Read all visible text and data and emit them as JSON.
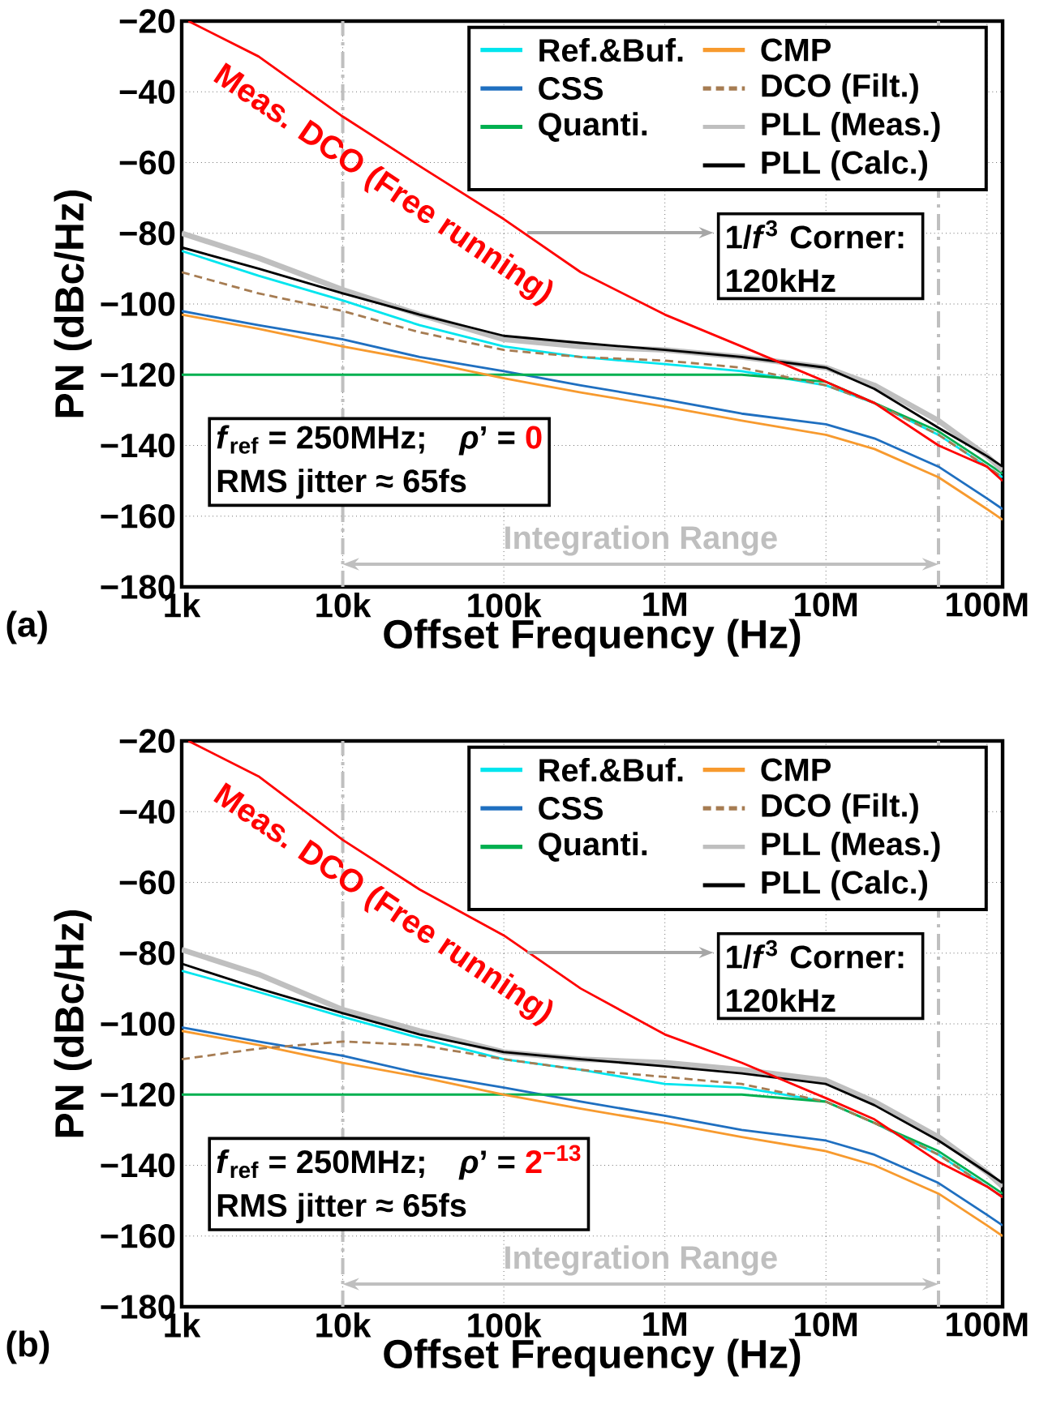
{
  "chart_data": [
    {
      "type": "line",
      "xlabel": "Offset Frequency (Hz)",
      "ylabel": "PN (dBc/Hz)",
      "log": "x",
      "grid": true,
      "legend": "top right",
      "x": [
        1000,
        3000,
        10000,
        30000,
        100000,
        300000,
        1000000,
        3000000,
        10000000,
        20000000,
        50000000,
        100000000,
        125000000
      ],
      "xlim": [
        1000,
        125000000
      ],
      "xticks": [
        {
          "value": 1000,
          "label": "1k"
        },
        {
          "value": 10000,
          "label": "10k"
        },
        {
          "value": 100000,
          "label": "100k"
        },
        {
          "value": 1000000,
          "label": "1M"
        },
        {
          "value": 10000000,
          "label": "10M"
        },
        {
          "value": 100000000,
          "label": "100M"
        }
      ],
      "ylim": [
        -180,
        -20
      ],
      "yticks": [
        {
          "value": -180,
          "label": "−180"
        },
        {
          "value": -160,
          "label": "−160"
        },
        {
          "value": -140,
          "label": "−140"
        },
        {
          "value": -120,
          "label": "−120"
        },
        {
          "value": -100,
          "label": "−100"
        },
        {
          "value": -80,
          "label": "−80"
        },
        {
          "value": -60,
          "label": "−60"
        },
        {
          "value": -40,
          "label": "−40"
        },
        {
          "value": -20,
          "label": "−20"
        }
      ],
      "series": [
        {
          "name": "Ref.&Buf.",
          "color": "#00e5ee",
          "values": [
            -85,
            -92,
            -99,
            -106,
            -112,
            -115,
            -117,
            -119,
            -123,
            -128,
            -137,
            -146,
            -149
          ]
        },
        {
          "name": "CSS",
          "color": "#1f6fc0",
          "values": [
            -102,
            -106,
            -110,
            -115,
            -119,
            -123,
            -127,
            -131,
            -134,
            -138,
            -146,
            -155,
            -158
          ]
        },
        {
          "name": "Quanti.",
          "color": "#00b050",
          "values": [
            -120,
            -120,
            -120,
            -120,
            -120,
            -120,
            -120,
            -120,
            -122,
            -128,
            -136,
            -145,
            -148
          ]
        },
        {
          "name": "CMP",
          "color": "#f79a2e",
          "values": [
            -103,
            -107,
            -112,
            -116,
            -121,
            -125,
            -129,
            -133,
            -137,
            -141,
            -149,
            -158,
            -161
          ]
        },
        {
          "name": "DCO (Filt.)",
          "color": "#a67c52",
          "line_style": "dashed",
          "values": [
            -91,
            -97,
            -102,
            -108,
            -113,
            -115,
            -116,
            -118,
            -123,
            -128,
            -137,
            -146,
            -149
          ]
        },
        {
          "name": "PLL (Meas.)",
          "color": "#bfbfbf",
          "values": [
            -80,
            -87,
            -96,
            -103,
            -110,
            -112,
            -113,
            -115,
            -118,
            -123,
            -133,
            -143,
            -147
          ]
        },
        {
          "name": "PLL (Calc.)",
          "color": "#000000",
          "values": [
            -84,
            -90,
            -97,
            -103,
            -109,
            -111,
            -113,
            -115,
            -118,
            -124,
            -135,
            -143,
            -146
          ]
        },
        {
          "name": "Meas. DCO (Free running)",
          "color": "#ff0000",
          "x": [
            1100,
            3000,
            10000,
            30000,
            100000,
            300000,
            1000000,
            3000000,
            10000000,
            20000000,
            50000000,
            100000000,
            125000000
          ],
          "values": [
            -20,
            -30,
            -47,
            -61,
            -76,
            -91,
            -103,
            -112,
            -122,
            -128,
            -140,
            -146,
            -150
          ]
        }
      ],
      "ref_lines": [
        {
          "axis": "x",
          "value": 10000,
          "color": "#bfbfbf",
          "line_style": "dashed"
        },
        {
          "axis": "x",
          "value": 50000000,
          "color": "#bfbfbf",
          "line_style": "dashed"
        }
      ],
      "annotations": [
        "(a)",
        "1/*f*$^{3}$ Corner: 120kHz",
        "*f*$_{ref}$ = 250MHz;",
        "*ρ*’ =",
        "0",
        "RMS jitter ≈ 65fs",
        "Integration Range"
      ]
    },
    {
      "type": "line",
      "xlabel": "Offset Frequency (Hz)",
      "ylabel": "PN (dBc/Hz)",
      "log": "x",
      "grid": true,
      "legend": "top right",
      "x": [
        1000,
        3000,
        10000,
        30000,
        100000,
        300000,
        1000000,
        3000000,
        10000000,
        20000000,
        50000000,
        100000000,
        125000000
      ],
      "xlim": [
        1000,
        125000000
      ],
      "xticks": [
        {
          "value": 1000,
          "label": "1k"
        },
        {
          "value": 10000,
          "label": "10k"
        },
        {
          "value": 100000,
          "label": "100k"
        },
        {
          "value": 1000000,
          "label": "1M"
        },
        {
          "value": 10000000,
          "label": "10M"
        },
        {
          "value": 100000000,
          "label": "100M"
        }
      ],
      "ylim": [
        -180,
        -20
      ],
      "yticks": [
        {
          "value": -180,
          "label": "−180"
        },
        {
          "value": -160,
          "label": "−160"
        },
        {
          "value": -140,
          "label": "−140"
        },
        {
          "value": -120,
          "label": "−120"
        },
        {
          "value": -100,
          "label": "−100"
        },
        {
          "value": -80,
          "label": "−80"
        },
        {
          "value": -60,
          "label": "−60"
        },
        {
          "value": -40,
          "label": "−40"
        },
        {
          "value": -20,
          "label": "−20"
        }
      ],
      "series": [
        {
          "name": "Ref.&Buf.",
          "color": "#00e5ee",
          "values": [
            -85,
            -91,
            -98,
            -104,
            -110,
            -113,
            -117,
            -118,
            -122,
            -128,
            -137,
            -146,
            -149
          ]
        },
        {
          "name": "CSS",
          "color": "#1f6fc0",
          "values": [
            -101,
            -105,
            -109,
            -114,
            -118,
            -122,
            -126,
            -130,
            -133,
            -137,
            -145,
            -154,
            -157
          ]
        },
        {
          "name": "Quanti.",
          "color": "#00b050",
          "values": [
            -120,
            -120,
            -120,
            -120,
            -120,
            -120,
            -120,
            -120,
            -122,
            -128,
            -136,
            -145,
            -148
          ]
        },
        {
          "name": "CMP",
          "color": "#f79a2e",
          "values": [
            -102,
            -106,
            -111,
            -115,
            -120,
            -124,
            -128,
            -132,
            -136,
            -140,
            -148,
            -157,
            -160
          ]
        },
        {
          "name": "DCO (Filt.)",
          "color": "#a67c52",
          "line_style": "dashed",
          "values": [
            -110,
            -107,
            -105,
            -106,
            -110,
            -113,
            -115,
            -117,
            -122,
            -128,
            -137,
            -146,
            -149
          ]
        },
        {
          "name": "PLL (Meas.)",
          "color": "#bfbfbf",
          "values": [
            -79,
            -86,
            -96,
            -102,
            -108,
            -110,
            -111,
            -113,
            -116,
            -122,
            -132,
            -142,
            -146
          ]
        },
        {
          "name": "PLL (Calc.)",
          "color": "#000000",
          "values": [
            -83,
            -90,
            -97,
            -103,
            -108,
            -110,
            -112,
            -114,
            -117,
            -123,
            -133,
            -142,
            -145
          ]
        },
        {
          "name": "Meas. DCO (Free running)",
          "color": "#ff0000",
          "x": [
            1100,
            3000,
            10000,
            30000,
            100000,
            300000,
            1000000,
            3000000,
            10000000,
            20000000,
            50000000,
            100000000,
            125000000
          ],
          "values": [
            -20,
            -30,
            -48,
            -62,
            -75,
            -90,
            -103,
            -111,
            -121,
            -127,
            -139,
            -146,
            -149
          ]
        }
      ],
      "ref_lines": [
        {
          "axis": "x",
          "value": 10000,
          "color": "#bfbfbf",
          "line_style": "dashed"
        },
        {
          "axis": "x",
          "value": 50000000,
          "color": "#bfbfbf",
          "line_style": "dashed"
        }
      ],
      "annotations": [
        "(b)",
        "1/*f*$^{3}$ Corner: 120kHz",
        "*f*$_{ref}$ = 250MHz;",
        "*ρ*’ =",
        "2$^{−13}$",
        "RMS jitter ≈ 65fs",
        "Integration Range"
      ]
    }
  ]
}
